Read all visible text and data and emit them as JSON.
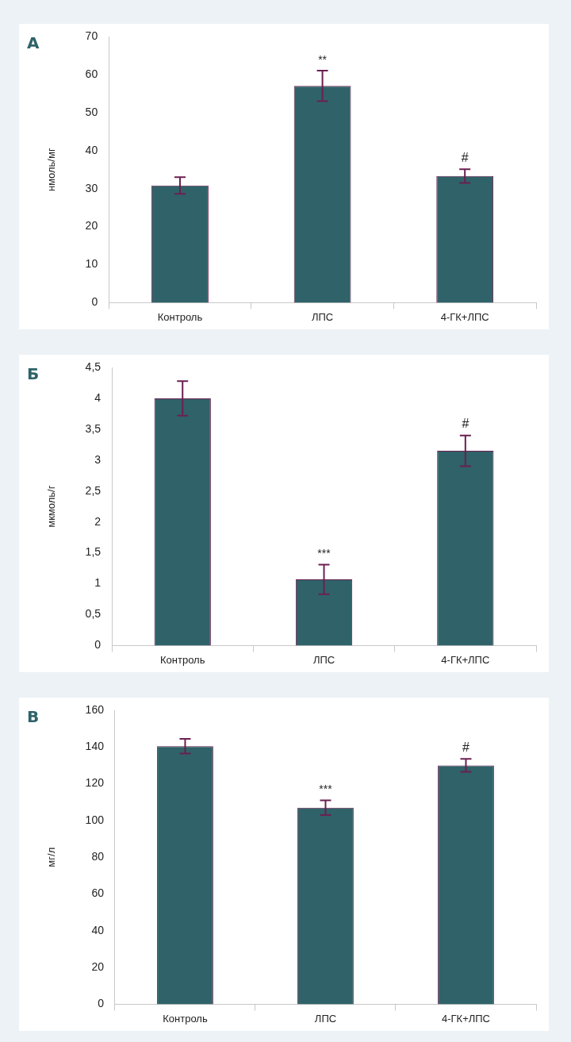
{
  "chart_data": [
    {
      "type": "bar",
      "title": "А",
      "ylabel": "нмоль/мг",
      "categories": [
        "Контроль",
        "ЛПС",
        "4-ГК+ЛПС"
      ],
      "values": [
        30.8,
        57,
        33.3
      ],
      "errors": [
        2.2,
        4,
        1.8
      ],
      "color": "#2f6369",
      "ylim": [
        0,
        70
      ],
      "yticks": [
        0,
        10,
        20,
        30,
        40,
        50,
        60,
        70
      ],
      "annotations": [
        {
          "text": "**",
          "x": "ЛПС",
          "y": 61
        },
        {
          "text": "#",
          "x": "4-ГК+ЛПС",
          "y": 35.1
        }
      ]
    },
    {
      "type": "bar",
      "title": "Б",
      "ylabel": "мкмоль/г",
      "categories": [
        "Контроль",
        "ЛПС",
        "4-ГК+ЛПС"
      ],
      "values": [
        4.0,
        1.07,
        3.15
      ],
      "errors": [
        0.28,
        0.24,
        0.25
      ],
      "color": "#2f6369",
      "ylim": [
        0,
        4.5
      ],
      "yticks": [
        0,
        {
          "value": 0.5,
          "label": "0,5"
        },
        1,
        {
          "value": 1.5,
          "label": "1,5"
        },
        2,
        {
          "value": 2.5,
          "label": "2,5"
        },
        3,
        {
          "value": 3.5,
          "label": "3,5"
        },
        4,
        {
          "value": 4.5,
          "label": "4,5"
        }
      ],
      "annotations": [
        {
          "text": "***",
          "x": "ЛПС",
          "y": 1.31
        },
        {
          "text": "#",
          "x": "4-ГК+ЛПС",
          "y": 3.4
        }
      ]
    },
    {
      "type": "bar",
      "title": "В",
      "ylabel": "мг/л",
      "categories": [
        "Контроль",
        "ЛПС",
        "4-ГК+ЛПС"
      ],
      "values": [
        140.5,
        107,
        130
      ],
      "errors": [
        4,
        4,
        3.5
      ],
      "color": "#2f6369",
      "ylim": [
        0,
        160
      ],
      "yticks": [
        0,
        20,
        40,
        60,
        80,
        100,
        120,
        140,
        160
      ],
      "annotations": [
        {
          "text": "***",
          "x": "ЛПС",
          "y": 111
        },
        {
          "text": "#",
          "x": "4-ГК+ЛПС",
          "y": 133.5
        }
      ]
    }
  ]
}
